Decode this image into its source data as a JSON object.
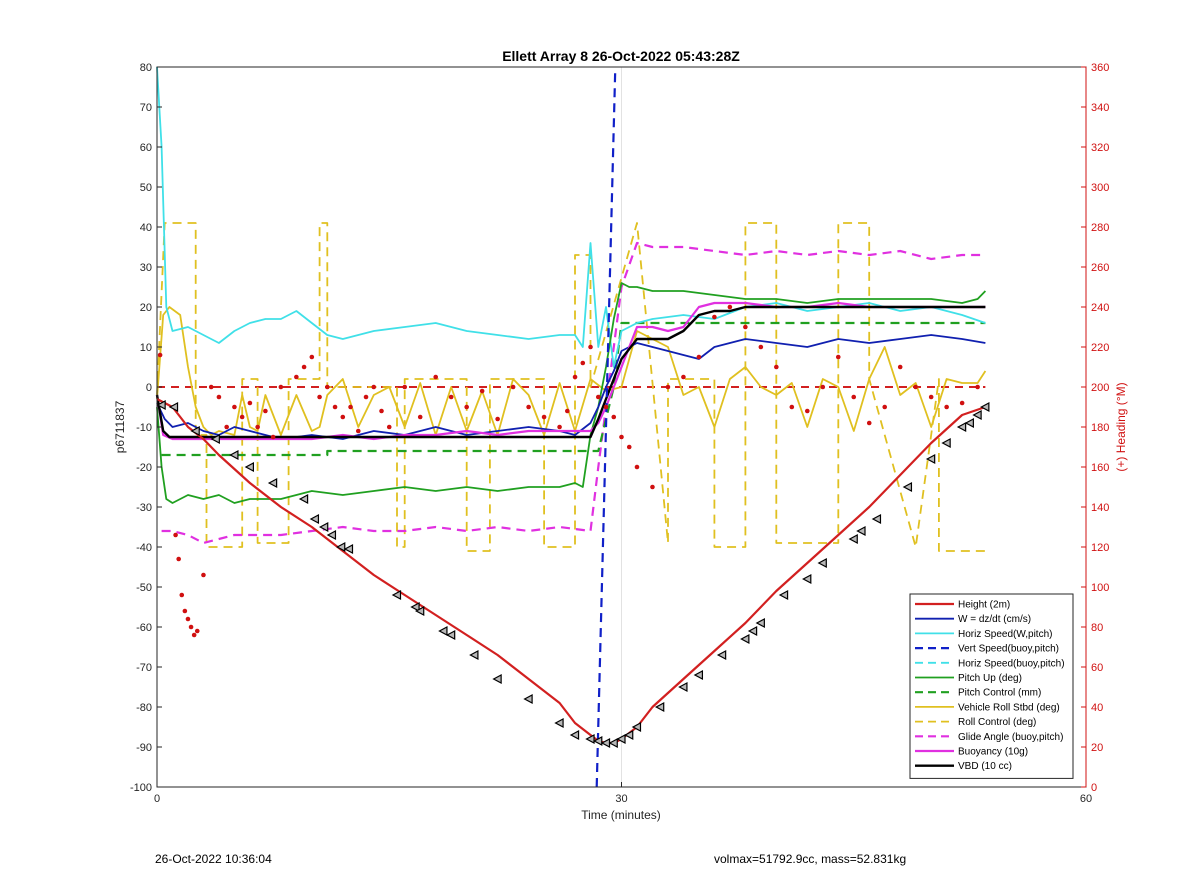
{
  "footer": {
    "timestamp": "26-Oct-2022 10:36:04",
    "volmax_mass": "volmax=51792.9cc, mass=52.831kg"
  },
  "chart_data": {
    "type": "line",
    "title": "Ellett Array 8 26-Oct-2022 05:43:28Z",
    "xlabel": "Time (minutes)",
    "ylabel": "p6711837",
    "y2label": "(+) Heading (°M)",
    "xlim": [
      0,
      60
    ],
    "ylim": [
      -100,
      80
    ],
    "y2lim": [
      0,
      360
    ],
    "xticks": [
      0,
      30,
      60
    ],
    "yticks": [
      -100,
      -90,
      -80,
      -70,
      -60,
      -50,
      -40,
      -30,
      -20,
      -10,
      0,
      10,
      20,
      30,
      40,
      50,
      60,
      70,
      80
    ],
    "y2ticks": [
      0,
      20,
      40,
      60,
      80,
      100,
      120,
      140,
      160,
      180,
      200,
      220,
      240,
      260,
      280,
      300,
      320,
      340,
      360
    ],
    "grid": "vertical-minor",
    "legend_position": "lower-right",
    "colors": {
      "height": "#d22020",
      "w": "#1020b0",
      "horiz_w": "#40e0e8",
      "vert_buoy": "#1020c8",
      "horiz_buoy": "#40e0e8",
      "pitch": "#20a020",
      "pitch_control": "#20a020",
      "roll": "#e0c020",
      "roll_control": "#e0c020",
      "glide": "#e030e0",
      "buoyancy": "#e030e0",
      "vbd": "#000000",
      "heading": "#d01010",
      "y2axis": "#d01010"
    },
    "series": [
      {
        "key": "height",
        "name": "Height (2m)",
        "style": "solid",
        "width": 2.2,
        "x": [
          0,
          1,
          2,
          3,
          4,
          6,
          8,
          10,
          12,
          14,
          16,
          18,
          20,
          22,
          24,
          26,
          27,
          28,
          28.5,
          29,
          29.5,
          30,
          31,
          32,
          34,
          36,
          38,
          40,
          42,
          44,
          46,
          48,
          50,
          52,
          53.5
        ],
        "y": [
          -3,
          -5,
          -10,
          -13,
          -17,
          -24,
          -30,
          -35,
          -41,
          -47,
          -52,
          -57,
          -62,
          -67,
          -73,
          -79,
          -84,
          -87,
          -88.5,
          -89,
          -89,
          -88,
          -85,
          -80,
          -73,
          -66,
          -59,
          -51,
          -44,
          -37,
          -30,
          -22,
          -14,
          -7,
          -5
        ]
      },
      {
        "key": "w",
        "name": "W = dz/dt (cm/s)",
        "style": "solid",
        "width": 1.8,
        "x": [
          0,
          0.5,
          1,
          2,
          3,
          4,
          5,
          6,
          8,
          10,
          12,
          14,
          16,
          18,
          20,
          22,
          24,
          26,
          27,
          28,
          28.5,
          29,
          29.5,
          30,
          31,
          32,
          33,
          34,
          35,
          36,
          38,
          40,
          42,
          44,
          46,
          48,
          50,
          52,
          53.5
        ],
        "y": [
          -4,
          -8,
          -10,
          -9,
          -11,
          -12,
          -10,
          -11,
          -13,
          -12,
          -13,
          -11,
          -12,
          -10,
          -12,
          -11,
          -10,
          -11,
          -12,
          -9,
          -5,
          0,
          4,
          9,
          11,
          10,
          9,
          8,
          7,
          10,
          12,
          11,
          10,
          12,
          11,
          12,
          13,
          12,
          11
        ]
      },
      {
        "key": "horiz_w",
        "name": "Horiz Speed(W,pitch)",
        "style": "solid",
        "width": 1.8,
        "x": [
          0,
          0.3,
          0.6,
          1,
          2,
          3,
          4,
          5,
          6,
          7,
          8,
          9,
          10,
          11,
          12,
          14,
          16,
          18,
          20,
          22,
          24,
          26,
          27,
          27.5,
          28,
          28.5,
          29,
          29.5,
          30,
          31,
          32,
          34,
          36,
          38,
          40,
          42,
          44,
          46,
          48,
          50,
          52,
          53.5
        ],
        "y": [
          80,
          60,
          20,
          14,
          15,
          13,
          11,
          14,
          16,
          17,
          17,
          19,
          16,
          13,
          12,
          14,
          15,
          16,
          14,
          13,
          12,
          13,
          13,
          10,
          36,
          10,
          20,
          5,
          14,
          16,
          17,
          18,
          17,
          20,
          21,
          19,
          20,
          21,
          19,
          20,
          18,
          16
        ]
      },
      {
        "key": "vert_buoy",
        "name": "Vert Speed(buoy,pitch)",
        "style": "dashed",
        "width": 2.2,
        "x": [
          28.4,
          28.8,
          29.2,
          29.6
        ],
        "y": [
          -100,
          -40,
          20,
          80
        ]
      },
      {
        "key": "horiz_buoy",
        "name": "Horiz Speed(buoy,pitch)",
        "style": "dashed",
        "width": 1.8,
        "x": [],
        "y": []
      },
      {
        "key": "pitch",
        "name": "Pitch Up (deg)",
        "style": "solid",
        "width": 1.8,
        "x": [
          0,
          0.3,
          0.6,
          1,
          2,
          3,
          4,
          5,
          6,
          8,
          10,
          12,
          14,
          16,
          18,
          20,
          22,
          24,
          26,
          27,
          27.5,
          28,
          28.5,
          29,
          29.5,
          30,
          30.5,
          31,
          32,
          34,
          36,
          38,
          40,
          42,
          44,
          46,
          48,
          50,
          52,
          53,
          53.5
        ],
        "y": [
          -5,
          -20,
          -28,
          -29,
          -27,
          -28,
          -27,
          -29,
          -28,
          -28,
          -26,
          -27,
          -26,
          -25,
          -26,
          -25,
          -26,
          -25,
          -25,
          -24,
          -25,
          -12,
          -5,
          5,
          17,
          26,
          25,
          25,
          24,
          24,
          23,
          22,
          22,
          21,
          22,
          22,
          22,
          22,
          21,
          22,
          24
        ]
      },
      {
        "key": "pitch_control",
        "name": "Pitch Control (mm)",
        "style": "dashed",
        "width": 2.2,
        "x": [
          0.3,
          11,
          11,
          28.5,
          29,
          29.5,
          30,
          53.5
        ],
        "y": [
          -17,
          -17,
          -16,
          -16,
          -8,
          0,
          16,
          16
        ]
      },
      {
        "key": "roll",
        "name": "Vehicle Roll Stbd (deg)",
        "style": "solid",
        "width": 1.8,
        "x": [
          0,
          0.4,
          0.8,
          1.5,
          2,
          2.5,
          3,
          3.5,
          4,
          5,
          5.5,
          6,
          6.5,
          7,
          8,
          9,
          10,
          10.5,
          11,
          12,
          13,
          14,
          15,
          16,
          17,
          18,
          19,
          20,
          21,
          22,
          23,
          24,
          25,
          26,
          27,
          28,
          29,
          30,
          31,
          32,
          33,
          34,
          35,
          36,
          37,
          38,
          39,
          40,
          41,
          42,
          43,
          44,
          45,
          46,
          47,
          48,
          49,
          50,
          51,
          52,
          53,
          53.5
        ],
        "y": [
          -3,
          18,
          20,
          18,
          5,
          -5,
          -10,
          -12,
          -11,
          -12,
          -2,
          -10,
          -11,
          -2,
          -12,
          -2,
          -11,
          -10,
          -2,
          2,
          -10,
          -2,
          0,
          -10,
          1,
          -12,
          0,
          -11,
          -1,
          -12,
          2,
          -2,
          -12,
          1,
          -11,
          2,
          -1,
          0,
          14,
          12,
          10,
          -2,
          0,
          -10,
          2,
          5,
          0,
          -2,
          1,
          -10,
          2,
          0,
          -11,
          2,
          10,
          -2,
          1,
          -10,
          2,
          1,
          1,
          4
        ]
      },
      {
        "key": "roll_control",
        "name": "Roll Control (deg)",
        "style": "dashed",
        "width": 1.8,
        "x": [
          0,
          0.5,
          0.5,
          2.5,
          2.5,
          3.2,
          3.2,
          5.5,
          5.5,
          6.5,
          6.5,
          8.5,
          8.5,
          10.5,
          10.5,
          11,
          11,
          15.5,
          15.5,
          16,
          16,
          20,
          20,
          21.5,
          21.5,
          25,
          25,
          27,
          27,
          28,
          28,
          31,
          31,
          33,
          33,
          36,
          36,
          38,
          38,
          40,
          40,
          44,
          44,
          46,
          46,
          49,
          49,
          50.5,
          50.5,
          53.5
        ],
        "y": [
          -2,
          41,
          41,
          41,
          -12,
          -12,
          -40,
          -40,
          2,
          2,
          -39,
          -39,
          2,
          2,
          41,
          41,
          0,
          0,
          -40,
          -40,
          2,
          2,
          -41,
          -41,
          2,
          2,
          -40,
          -40,
          33,
          33,
          0,
          41,
          41,
          -39,
          2,
          2,
          -40,
          -40,
          41,
          41,
          -39,
          -39,
          41,
          41,
          2,
          -40,
          -40,
          2,
          -41,
          -41
        ]
      },
      {
        "key": "glide",
        "name": "Glide Angle (buoy,pitch)",
        "style": "dashed",
        "width": 2.2,
        "x": [
          0.3,
          1,
          2,
          3,
          4,
          5,
          6,
          8,
          10,
          12,
          14,
          16,
          18,
          20,
          22,
          24,
          26,
          28,
          28.5,
          29,
          29.5,
          30,
          31,
          32,
          34,
          36,
          38,
          40,
          42,
          44,
          46,
          48,
          50,
          52,
          53.5
        ],
        "y": [
          -36,
          -36,
          -37,
          -39,
          -38,
          -37,
          -37,
          -37,
          -36,
          -35,
          -36,
          -36,
          -35,
          -36,
          -35,
          -36,
          -35,
          -36,
          -20,
          -5,
          10,
          25,
          36,
          35,
          35,
          34,
          33,
          34,
          33,
          34,
          33,
          34,
          32,
          33,
          33
        ]
      },
      {
        "key": "buoyancy",
        "name": "Buoyancy (10g)",
        "style": "solid",
        "width": 2.2,
        "x": [
          0,
          0.4,
          1,
          2,
          4,
          6,
          8,
          10,
          12,
          14,
          16,
          18,
          20,
          22,
          24,
          26,
          27,
          28,
          28.5,
          29,
          29.5,
          30,
          31,
          32,
          33,
          34,
          35,
          36,
          38,
          40,
          42,
          44,
          46,
          48,
          50,
          52,
          53.5
        ],
        "y": [
          -2,
          -12,
          -13,
          -13,
          -13,
          -13,
          -13,
          -13,
          -12,
          -13,
          -12,
          -12,
          -11,
          -12,
          -11,
          -11,
          -11,
          -11,
          -9,
          -5,
          0,
          5,
          15,
          15,
          14,
          15,
          20,
          21,
          21,
          20,
          20,
          21,
          20,
          20,
          20,
          20,
          20
        ]
      },
      {
        "key": "vbd",
        "name": "VBD (10 cc)",
        "style": "solid",
        "width": 2.4,
        "x": [
          0,
          0.4,
          0.8,
          5,
          10,
          15,
          20,
          25,
          28,
          28.5,
          29,
          29.5,
          30,
          31,
          32,
          33,
          34,
          35,
          36,
          37,
          38,
          40,
          45,
          50,
          53.5
        ],
        "y": [
          -2,
          -11,
          -12.5,
          -12.5,
          -12.5,
          -12.5,
          -12.5,
          -12.5,
          -12.5,
          -8,
          -3,
          2,
          7,
          12,
          12,
          12,
          14,
          18,
          19,
          19,
          20,
          20,
          20,
          20,
          20
        ]
      }
    ],
    "heading_points": {
      "name": "(+) Heading (°M)",
      "axis": "y2",
      "x": [
        0.2,
        1.2,
        1.4,
        1.6,
        1.8,
        2.0,
        2.2,
        2.4,
        2.6,
        3.0,
        3.5,
        4.0,
        4.5,
        5.0,
        5.5,
        6.0,
        6.5,
        7.0,
        7.5,
        8.0,
        9.0,
        9.5,
        10.0,
        10.5,
        11.0,
        11.5,
        12.0,
        12.5,
        13.0,
        13.5,
        14.0,
        14.5,
        15.0,
        16.0,
        17.0,
        18.0,
        19.0,
        20.0,
        21.0,
        22.0,
        23.0,
        24.0,
        25.0,
        26.0,
        26.5,
        27.0,
        27.5,
        28.0,
        28.5,
        29.0,
        29.5,
        30.0,
        30.5,
        31.0,
        32.0,
        33.0,
        34.0,
        35.0,
        36.0,
        37.0,
        38.0,
        39.0,
        40.0,
        41.0,
        42.0,
        43.0,
        44.0,
        45.0,
        46.0,
        47.0,
        48.0,
        49.0,
        50.0,
        51.0,
        52.0,
        53.0
      ],
      "y": [
        216,
        126,
        114,
        96,
        88,
        84,
        80,
        76,
        78,
        106,
        200,
        195,
        180,
        190,
        185,
        192,
        180,
        188,
        175,
        200,
        205,
        210,
        215,
        195,
        200,
        190,
        185,
        190,
        178,
        195,
        200,
        188,
        180,
        200,
        185,
        205,
        195,
        190,
        198,
        184,
        200,
        190,
        185,
        180,
        188,
        205,
        212,
        220,
        195,
        190,
        185,
        175,
        170,
        160,
        150,
        200,
        205,
        215,
        235,
        240,
        230,
        220,
        210,
        190,
        188,
        200,
        215,
        195,
        182,
        190,
        210,
        200,
        195,
        190,
        192,
        200
      ]
    },
    "marker_points": {
      "series": "height",
      "x": [
        0.3,
        1.1,
        2.5,
        3.8,
        5,
        6,
        7.5,
        9.5,
        10.2,
        10.8,
        11.3,
        11.9,
        12.4,
        15.5,
        16.7,
        17,
        18.5,
        19,
        20.5,
        22,
        24,
        26,
        27,
        28,
        28.5,
        29,
        29.5,
        30,
        30.5,
        31,
        32.5,
        34,
        35,
        36.5,
        38,
        38.5,
        39,
        40.5,
        42,
        43,
        45,
        45.5,
        46.5,
        48.5,
        50,
        51,
        52,
        52.5,
        53,
        53.5
      ],
      "y": [
        -4.5,
        -5,
        -11,
        -13,
        -17,
        -20,
        -24,
        -28,
        -33,
        -35,
        -37,
        -40,
        -40.5,
        -52,
        -55,
        -56,
        -61,
        -62,
        -67,
        -73,
        -78,
        -84,
        -87,
        -88,
        -88.5,
        -89,
        -89,
        -88,
        -87,
        -85,
        -80,
        -75,
        -72,
        -67,
        -63,
        -61,
        -59,
        -52,
        -48,
        -44,
        -38,
        -36,
        -33,
        -25,
        -18,
        -14,
        -10,
        -9,
        -7,
        -5
      ]
    }
  }
}
